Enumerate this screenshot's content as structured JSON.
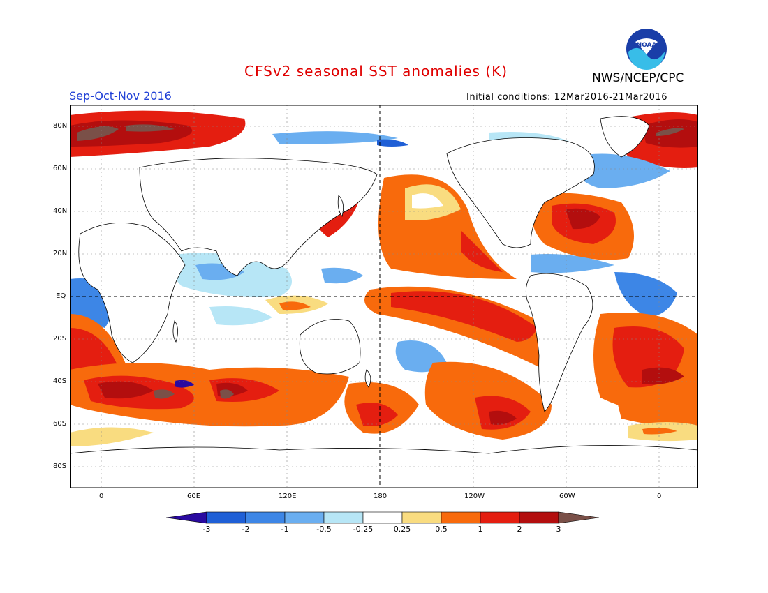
{
  "header": {
    "title": "CFSv2 seasonal SST anomalies (K)",
    "period": "Sep-Oct-Nov 2016",
    "initial_conditions": "Initial conditions: 12Mar2016-21Mar2016",
    "agency": "NWS/NCEP/CPC",
    "logo_text": "NOAA"
  },
  "axes": {
    "lat_labels": [
      "80N",
      "60N",
      "40N",
      "20N",
      "EQ",
      "20S",
      "40S",
      "60S",
      "80S"
    ],
    "lon_labels": [
      "0",
      "60E",
      "120E",
      "180",
      "120W",
      "60W",
      "0"
    ]
  },
  "colorbar": {
    "labels": [
      "-3",
      "-2",
      "-1",
      "-0.5",
      "-0.25",
      "0.25",
      "0.5",
      "1",
      "2",
      "3"
    ],
    "colors": [
      "#2a0aa0",
      "#1f5fd6",
      "#3d86e6",
      "#6aaef0",
      "#b7e6f6",
      "#ffffff",
      "#f9dc80",
      "#f86a0c",
      "#e41e10",
      "#b30e0e",
      "#7a5048"
    ]
  }
}
